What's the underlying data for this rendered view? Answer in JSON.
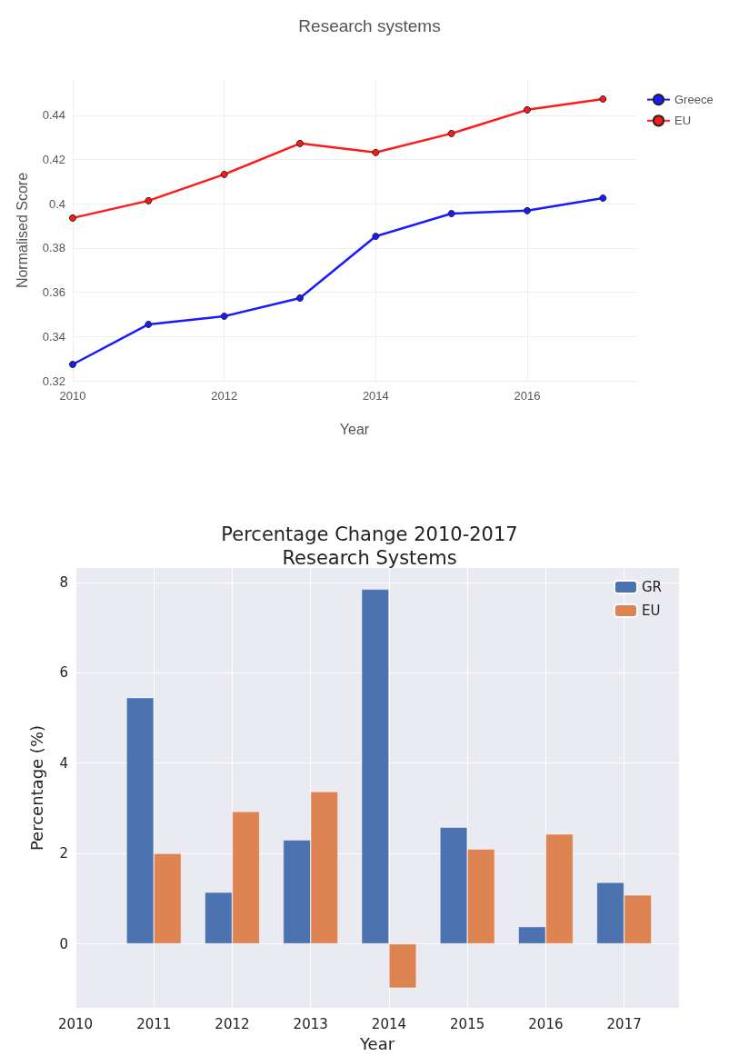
{
  "chart_data": [
    {
      "type": "line",
      "title": "Research systems",
      "xlabel": "Year",
      "ylabel": "Normalised Score",
      "x": [
        2010,
        2011,
        2012,
        2013,
        2014,
        2015,
        2016,
        2017
      ],
      "series": [
        {
          "name": "Greece",
          "color": "#1a1aff",
          "values": [
            0.3274,
            0.3455,
            0.3492,
            0.3574,
            0.3853,
            0.3956,
            0.3969,
            0.4026
          ]
        },
        {
          "name": "EU",
          "color": "#ff1a1a",
          "values": [
            0.3936,
            0.4014,
            0.4133,
            0.4273,
            0.4232,
            0.4318,
            0.4425,
            0.4474
          ]
        }
      ],
      "xlim": [
        2010,
        2017.44
      ],
      "xticks": [
        2010,
        2012,
        2014,
        2016
      ],
      "ylim": [
        0.32,
        0.456
      ],
      "yticks": [
        0.32,
        0.34,
        0.36,
        0.38,
        0.4,
        0.42,
        0.44
      ],
      "grid": true,
      "legend": "right",
      "marker": "circle",
      "line_style": "solid"
    },
    {
      "type": "bar",
      "title": "Percentage Change 2010-2017\nResearch Systems",
      "xlabel": "Year",
      "ylabel": "Percentage (%)",
      "x": [
        2011,
        2012,
        2013,
        2014,
        2015,
        2016,
        2017
      ],
      "series": [
        {
          "name": "GR",
          "color": "#4c72b0",
          "values": [
            5.45,
            1.14,
            2.3,
            7.85,
            2.58,
            0.38,
            1.36
          ]
        },
        {
          "name": "EU",
          "color": "#dd8452",
          "values": [
            2.0,
            2.93,
            3.37,
            -0.98,
            2.1,
            2.43,
            1.08
          ]
        }
      ],
      "xlim": [
        2010,
        2017.7
      ],
      "xticks": [
        2010,
        2011,
        2012,
        2013,
        2014,
        2015,
        2016,
        2017
      ],
      "ylim": [
        -1.42,
        8.32
      ],
      "yticks": [
        0,
        2,
        4,
        6,
        8
      ],
      "grid": true,
      "legend": "top right"
    }
  ]
}
